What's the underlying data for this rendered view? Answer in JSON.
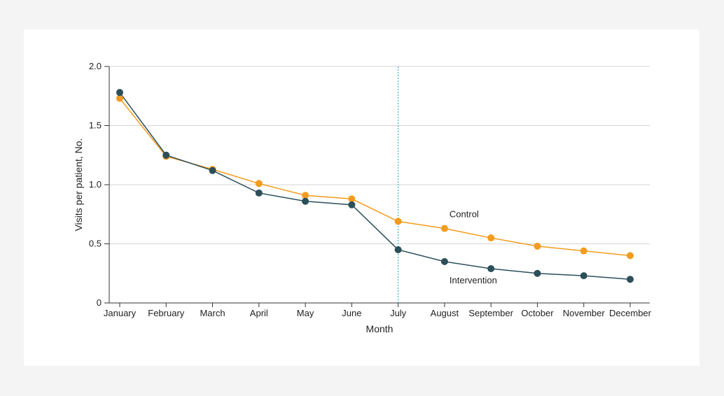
{
  "chart_data": {
    "type": "line",
    "categories": [
      "January",
      "February",
      "March",
      "April",
      "May",
      "June",
      "July",
      "August",
      "September",
      "October",
      "November",
      "December"
    ],
    "series": [
      {
        "name": "Control",
        "color": "#f39c1f",
        "values": [
          1.73,
          1.24,
          1.13,
          1.01,
          0.91,
          0.88,
          0.69,
          0.63,
          0.55,
          0.48,
          0.44,
          0.4
        ]
      },
      {
        "name": "Intervention",
        "color": "#2c4f5a",
        "values": [
          1.78,
          1.25,
          1.12,
          0.93,
          0.86,
          0.83,
          0.45,
          0.35,
          0.29,
          0.25,
          0.23,
          0.2
        ]
      }
    ],
    "xlabel": "Month",
    "ylabel": "Visits per patient, No.",
    "ylim": [
      0,
      2.0
    ],
    "yticks": [
      0,
      0.5,
      1.0,
      1.5,
      2.0
    ],
    "ytick_labels": [
      "0",
      "0.5",
      "1.0",
      "1.5",
      "2.0"
    ],
    "grid": true,
    "reference_line": {
      "category": "July",
      "color": "#4fb3dd",
      "style": "dotted"
    }
  }
}
